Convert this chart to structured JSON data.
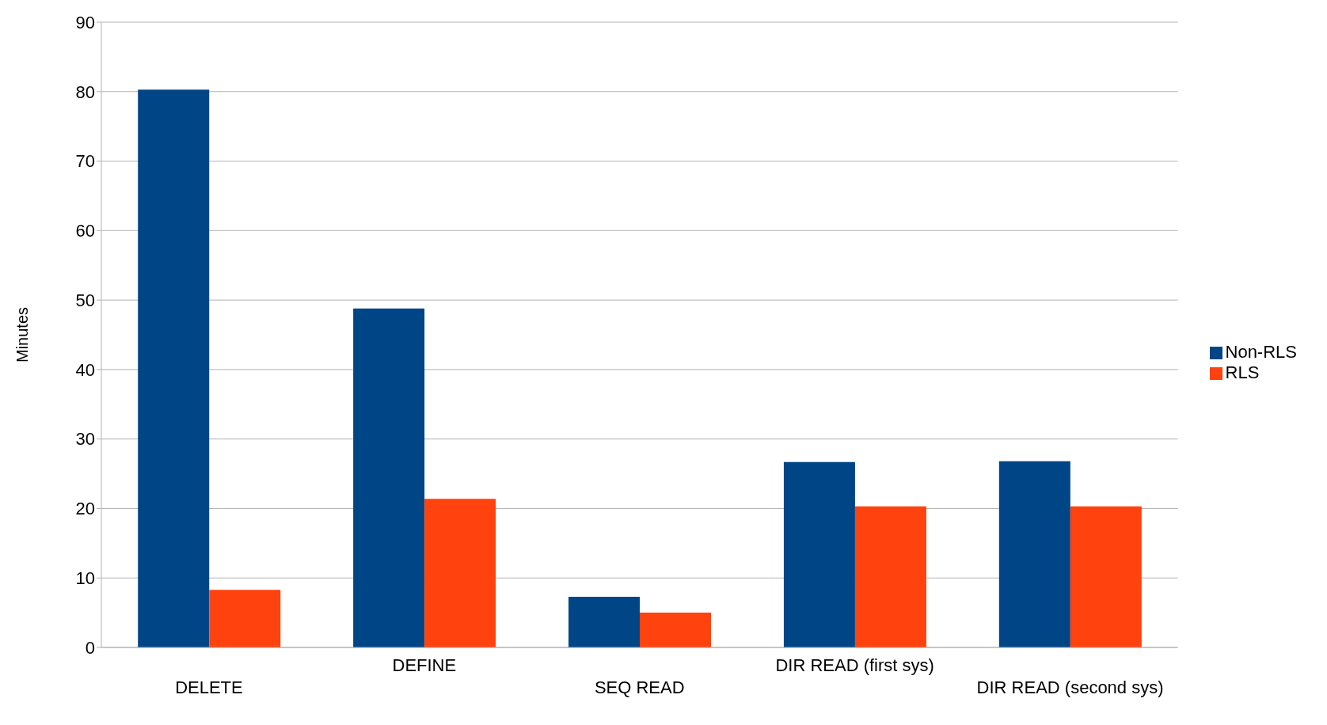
{
  "chart_data": {
    "type": "bar",
    "ylabel": "Minutes",
    "categories": [
      "DELETE",
      "DEFINE",
      "SEQ READ",
      "DIR READ (first sys)",
      "DIR READ (second sys)"
    ],
    "series": [
      {
        "name": "Non-RLS",
        "color": "#004586",
        "values": [
          80.3,
          48.8,
          7.3,
          26.7,
          26.8
        ]
      },
      {
        "name": "RLS",
        "color": "#ff420e",
        "values": [
          8.3,
          21.4,
          5.0,
          20.3,
          20.3
        ]
      }
    ],
    "ylim": [
      0,
      90
    ],
    "yticks": [
      0,
      10,
      20,
      30,
      40,
      50,
      60,
      70,
      80,
      90
    ],
    "grid": "y",
    "legend": "right"
  }
}
